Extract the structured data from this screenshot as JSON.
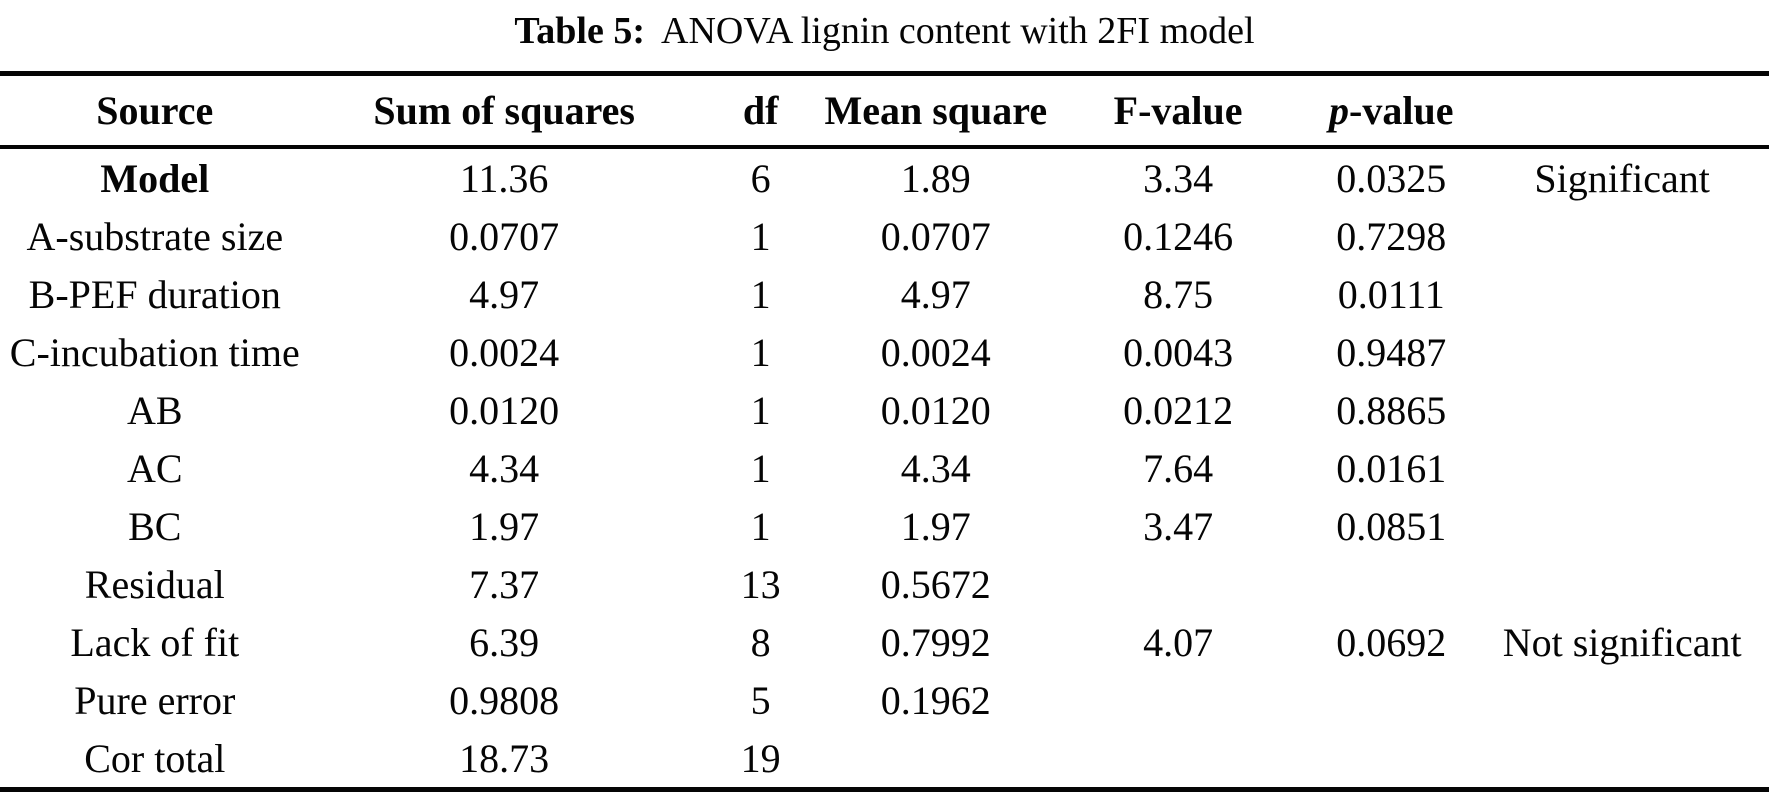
{
  "caption": {
    "label": "Table 5:",
    "text": "ANOVA lignin content with 2FI model"
  },
  "table": {
    "headers": {
      "source": "Source",
      "sum_of_squares": "Sum of squares",
      "df": "df",
      "mean_square": "Mean square",
      "f_value": "F-value",
      "p_value_italic_part": "p",
      "p_value_rest": "-value",
      "note": ""
    },
    "rows": [
      {
        "source": "Model",
        "ss": "11.36",
        "df": "6",
        "ms": "1.89",
        "f": "3.34",
        "p": "0.0325",
        "note": "Significant"
      },
      {
        "source": "A-substrate size",
        "ss": "0.0707",
        "df": "1",
        "ms": "0.0707",
        "f": "0.1246",
        "p": "0.7298",
        "note": ""
      },
      {
        "source": "B-PEF duration",
        "ss": "4.97",
        "df": "1",
        "ms": "4.97",
        "f": "8.75",
        "p": "0.0111",
        "note": ""
      },
      {
        "source": "C-incubation time",
        "ss": "0.0024",
        "df": "1",
        "ms": "0.0024",
        "f": "0.0043",
        "p": "0.9487",
        "note": ""
      },
      {
        "source": "AB",
        "ss": "0.0120",
        "df": "1",
        "ms": "0.0120",
        "f": "0.0212",
        "p": "0.8865",
        "note": ""
      },
      {
        "source": "AC",
        "ss": "4.34",
        "df": "1",
        "ms": "4.34",
        "f": "7.64",
        "p": "0.0161",
        "note": ""
      },
      {
        "source": "BC",
        "ss": "1.97",
        "df": "1",
        "ms": "1.97",
        "f": "3.47",
        "p": "0.0851",
        "note": ""
      },
      {
        "source": "Residual",
        "ss": "7.37",
        "df": "13",
        "ms": "0.5672",
        "f": "",
        "p": "",
        "note": ""
      },
      {
        "source": "Lack of fit",
        "ss": "6.39",
        "df": "8",
        "ms": "0.7992",
        "f": "4.07",
        "p": "0.0692",
        "note": "Not significant"
      },
      {
        "source": "Pure error",
        "ss": "0.9808",
        "df": "5",
        "ms": "0.1962",
        "f": "",
        "p": "",
        "note": ""
      },
      {
        "source": "Cor total",
        "ss": "18.73",
        "df": "19",
        "ms": "",
        "f": "",
        "p": "",
        "note": ""
      }
    ]
  },
  "colors": {
    "text": "#050505",
    "background": "#ffffff",
    "rule": "#050505"
  }
}
